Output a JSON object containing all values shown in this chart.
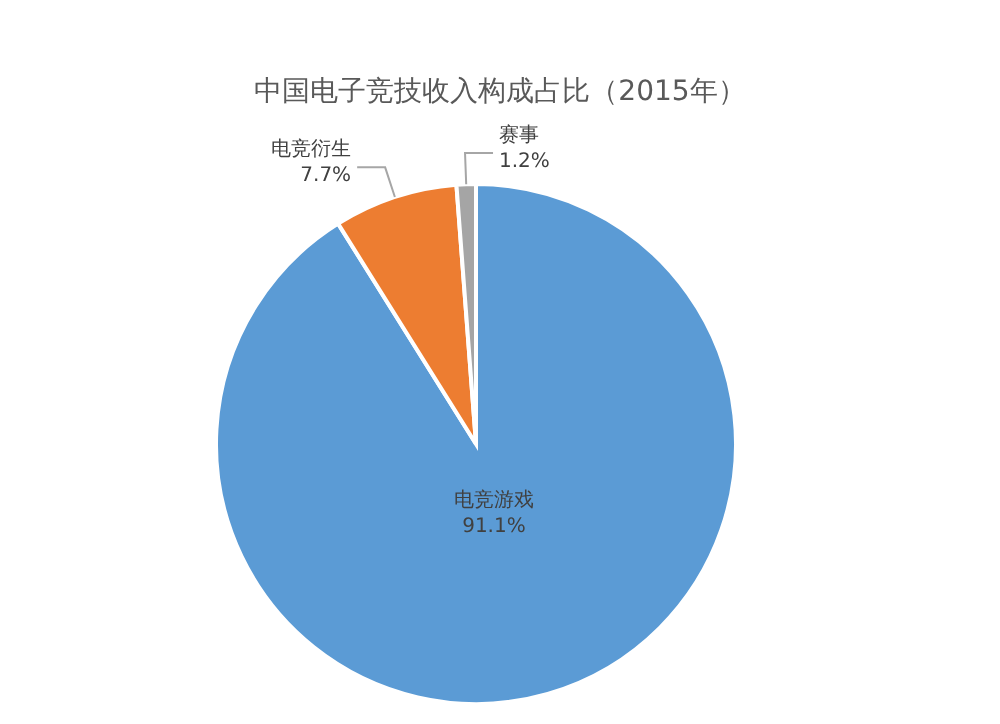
{
  "chart_data": {
    "type": "pie",
    "title": "中国电子竞技收入构成占比（2015年）",
    "categories": [
      "电竞游戏",
      "电竞衍生",
      "赛事"
    ],
    "values": [
      91.1,
      7.7,
      1.2
    ],
    "colors": [
      "#5b9bd5",
      "#ed7d31",
      "#a5a5a5"
    ],
    "value_labels": [
      "91.1%",
      "7.7%",
      "1.2%"
    ]
  }
}
